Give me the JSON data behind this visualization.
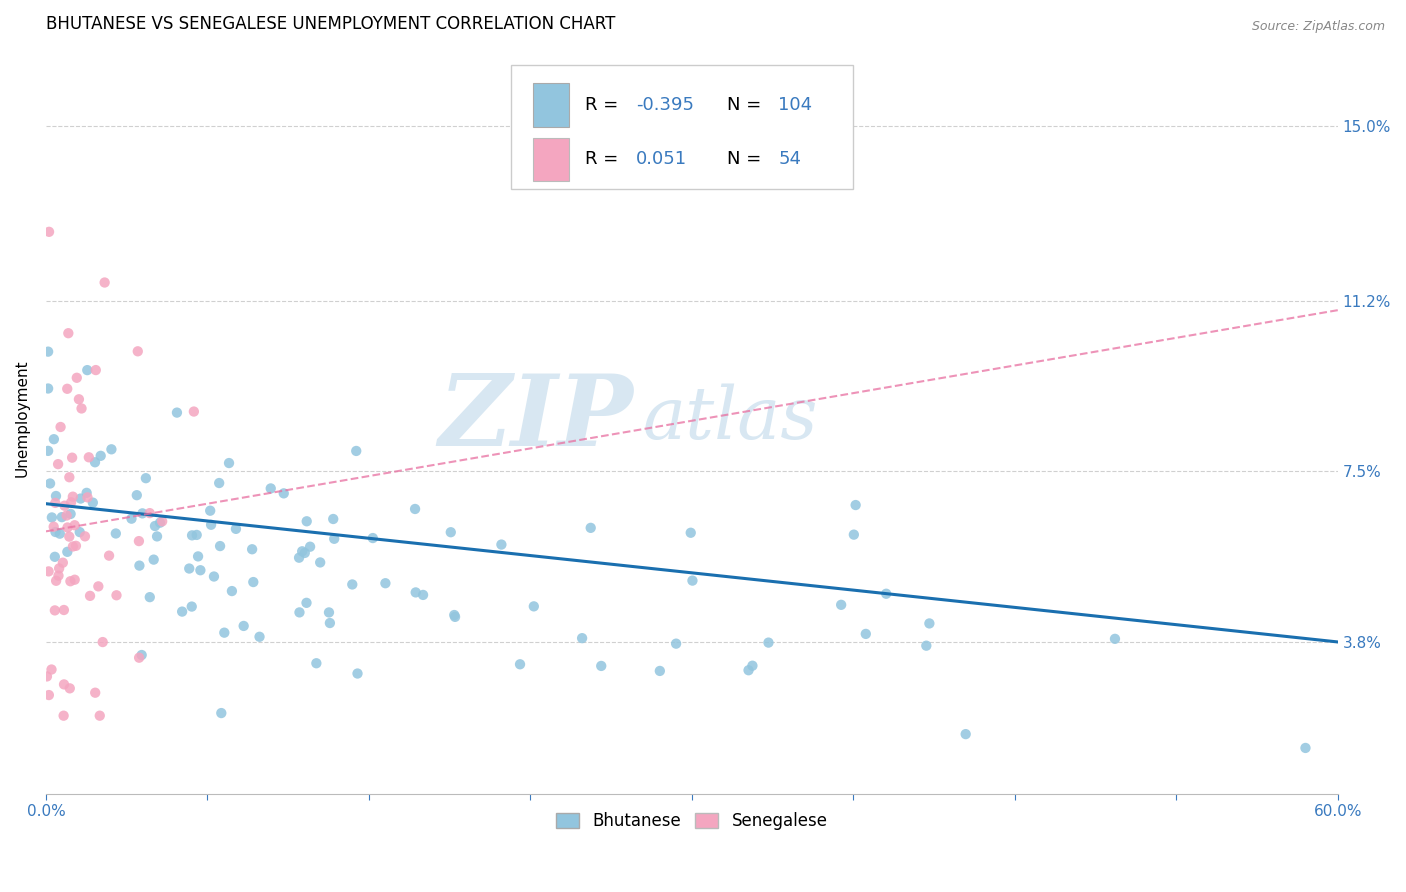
{
  "title": "BHUTANESE VS SENEGALESE UNEMPLOYMENT CORRELATION CHART",
  "source": "Source: ZipAtlas.com",
  "ylabel": "Unemployment",
  "x_min": 0.0,
  "x_max": 0.6,
  "y_min": 0.005,
  "y_max": 0.168,
  "yticks": [
    0.038,
    0.075,
    0.112,
    0.15
  ],
  "ytick_labels": [
    "3.8%",
    "7.5%",
    "11.2%",
    "15.0%"
  ],
  "blue_color": "#92c5de",
  "pink_color": "#f4a6c0",
  "trend_blue": "#1a6faf",
  "trend_pink": "#e86fa0",
  "legend_R_blue": "-0.395",
  "legend_N_blue": "104",
  "legend_R_pink": "0.051",
  "legend_N_pink": "54",
  "label_blue": "Bhutanese",
  "label_pink": "Senegalese",
  "watermark_ZIP": "ZIP",
  "watermark_atlas": "atlas",
  "title_fontsize": 12,
  "tick_label_color": "#3a7abf",
  "text_blue_color": "#3a7abf"
}
